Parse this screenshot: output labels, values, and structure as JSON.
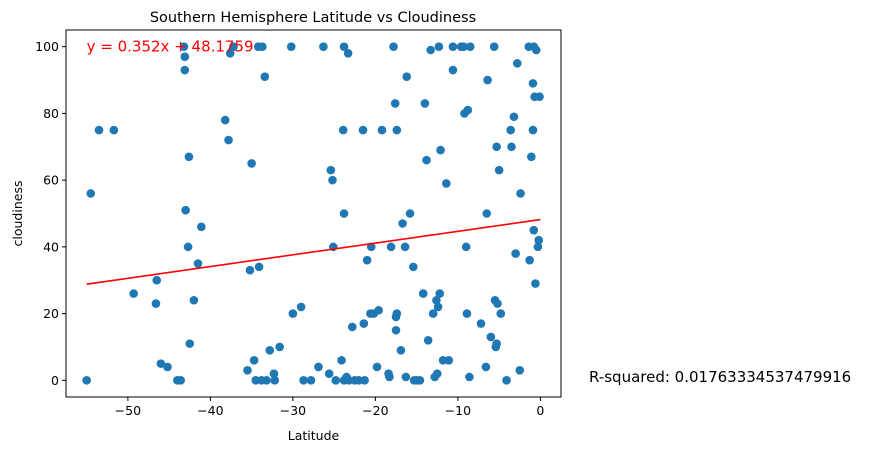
{
  "chart_data": {
    "type": "scatter",
    "title": "Southern Hemisphere Latitude vs Cloudiness",
    "xlabel": "Latitude",
    "ylabel": "cloudiness",
    "xlim": [
      -57.5,
      2.5
    ],
    "ylim": [
      -5,
      105
    ],
    "xticks": [
      -50,
      -40,
      -30,
      -20,
      -10,
      0
    ],
    "yticks": [
      0,
      20,
      40,
      60,
      80,
      100
    ],
    "grid": false,
    "point_color": "#1f77b4",
    "series": [
      {
        "points": [
          [
            -55,
            0
          ],
          [
            -54.5,
            56
          ],
          [
            -53.5,
            75
          ],
          [
            -51.7,
            75
          ],
          [
            -49.3,
            26
          ],
          [
            -46.5,
            30
          ],
          [
            -46.6,
            23
          ],
          [
            -46,
            5
          ],
          [
            -45.2,
            4
          ],
          [
            -44,
            0
          ],
          [
            -43.6,
            0
          ],
          [
            -43.2,
            100
          ],
          [
            -43.1,
            97
          ],
          [
            -43.1,
            93
          ],
          [
            -43,
            51
          ],
          [
            -42.7,
            40
          ],
          [
            -42.6,
            67
          ],
          [
            -42.5,
            11
          ],
          [
            -42,
            24
          ],
          [
            -41.5,
            35
          ],
          [
            -41.1,
            46
          ],
          [
            -38.2,
            78
          ],
          [
            -37.8,
            72
          ],
          [
            -37.6,
            98
          ],
          [
            -37.2,
            100
          ],
          [
            -35.5,
            3
          ],
          [
            -35.2,
            33
          ],
          [
            -35,
            65
          ],
          [
            -34.7,
            6
          ],
          [
            -34.5,
            0
          ],
          [
            -34.2,
            100
          ],
          [
            -34.1,
            34
          ],
          [
            -33.8,
            0
          ],
          [
            -33.7,
            100
          ],
          [
            -33.4,
            91
          ],
          [
            -33.2,
            0
          ],
          [
            -32.8,
            9
          ],
          [
            -32.3,
            2
          ],
          [
            -32.2,
            0
          ],
          [
            -31.6,
            10
          ],
          [
            -30.2,
            100
          ],
          [
            -30,
            20
          ],
          [
            -29,
            22
          ],
          [
            -28.7,
            0
          ],
          [
            -27.8,
            0
          ],
          [
            -26.9,
            4
          ],
          [
            -26.3,
            100
          ],
          [
            -25.6,
            2
          ],
          [
            -25.4,
            63
          ],
          [
            -25.2,
            60
          ],
          [
            -25.1,
            40
          ],
          [
            -24.8,
            0
          ],
          [
            -24.1,
            6
          ],
          [
            -23.9,
            75
          ],
          [
            -23.8,
            100
          ],
          [
            -23.8,
            0
          ],
          [
            -23.8,
            50
          ],
          [
            -23.5,
            1
          ],
          [
            -23.3,
            98
          ],
          [
            -23.2,
            0
          ],
          [
            -22.8,
            16
          ],
          [
            -22.5,
            0
          ],
          [
            -22,
            0
          ],
          [
            -21.5,
            75
          ],
          [
            -21.4,
            17
          ],
          [
            -21.3,
            0
          ],
          [
            -21,
            36
          ],
          [
            -20.6,
            20
          ],
          [
            -20.5,
            40
          ],
          [
            -20.2,
            20
          ],
          [
            -19.8,
            4
          ],
          [
            -19.6,
            21
          ],
          [
            -19.2,
            75
          ],
          [
            -18.4,
            2
          ],
          [
            -18.3,
            1
          ],
          [
            -18.1,
            40
          ],
          [
            -17.8,
            100
          ],
          [
            -17.6,
            83
          ],
          [
            -17.5,
            15
          ],
          [
            -17.5,
            19
          ],
          [
            -17.4,
            20
          ],
          [
            -17.4,
            75
          ],
          [
            -16.9,
            9
          ],
          [
            -16.7,
            47
          ],
          [
            -16.4,
            40
          ],
          [
            -16.3,
            1
          ],
          [
            -16.2,
            91
          ],
          [
            -15.8,
            50
          ],
          [
            -15.4,
            34
          ],
          [
            -15.3,
            0
          ],
          [
            -15,
            0
          ],
          [
            -14.6,
            0
          ],
          [
            -14.2,
            26
          ],
          [
            -14,
            83
          ],
          [
            -13.8,
            66
          ],
          [
            -13.6,
            12
          ],
          [
            -13.3,
            99
          ],
          [
            -13,
            20
          ],
          [
            -12.8,
            1
          ],
          [
            -12.6,
            24
          ],
          [
            -12.5,
            2
          ],
          [
            -12.4,
            22
          ],
          [
            -12.3,
            100
          ],
          [
            -12.2,
            26
          ],
          [
            -12.1,
            69
          ],
          [
            -11.8,
            6
          ],
          [
            -11.4,
            59
          ],
          [
            -11.1,
            6
          ],
          [
            -10.6,
            100
          ],
          [
            -10.6,
            93
          ],
          [
            -9.6,
            100
          ],
          [
            -9.3,
            100
          ],
          [
            -9.2,
            80
          ],
          [
            -9,
            40
          ],
          [
            -8.9,
            20
          ],
          [
            -8.8,
            81
          ],
          [
            -8.6,
            1
          ],
          [
            -8.5,
            100
          ],
          [
            -7.2,
            17
          ],
          [
            -6.6,
            4
          ],
          [
            -6.5,
            50
          ],
          [
            -6.4,
            90
          ],
          [
            -6,
            13
          ],
          [
            -5.6,
            100
          ],
          [
            -5.5,
            24
          ],
          [
            -5.4,
            10
          ],
          [
            -5.3,
            11
          ],
          [
            -5.3,
            70
          ],
          [
            -5.2,
            23
          ],
          [
            -5,
            63
          ],
          [
            -4.8,
            20
          ],
          [
            -4.1,
            0
          ],
          [
            -3.6,
            75
          ],
          [
            -3.5,
            70
          ],
          [
            -3.2,
            79
          ],
          [
            -3,
            38
          ],
          [
            -2.8,
            95
          ],
          [
            -2.5,
            3
          ],
          [
            -2.4,
            56
          ],
          [
            -1.4,
            100
          ],
          [
            -1.3,
            36
          ],
          [
            -1.1,
            67
          ],
          [
            -0.9,
            89
          ],
          [
            -0.9,
            75
          ],
          [
            -0.8,
            45
          ],
          [
            -0.8,
            100
          ],
          [
            -0.7,
            85
          ],
          [
            -0.6,
            29
          ],
          [
            -0.5,
            99
          ],
          [
            -0.3,
            40
          ],
          [
            -0.2,
            42
          ],
          [
            -0.1,
            85
          ]
        ]
      }
    ],
    "regression": {
      "slope": 0.352,
      "intercept": 48.1759,
      "x_range": [
        -55,
        0
      ],
      "color": "#ff0000"
    },
    "annotations": {
      "equation": {
        "text": "y = 0.352x + 48.1759",
        "x": -55,
        "y": 100,
        "color": "#ff0000"
      },
      "r_squared": "R-squared: 0.01763334537479916"
    }
  }
}
